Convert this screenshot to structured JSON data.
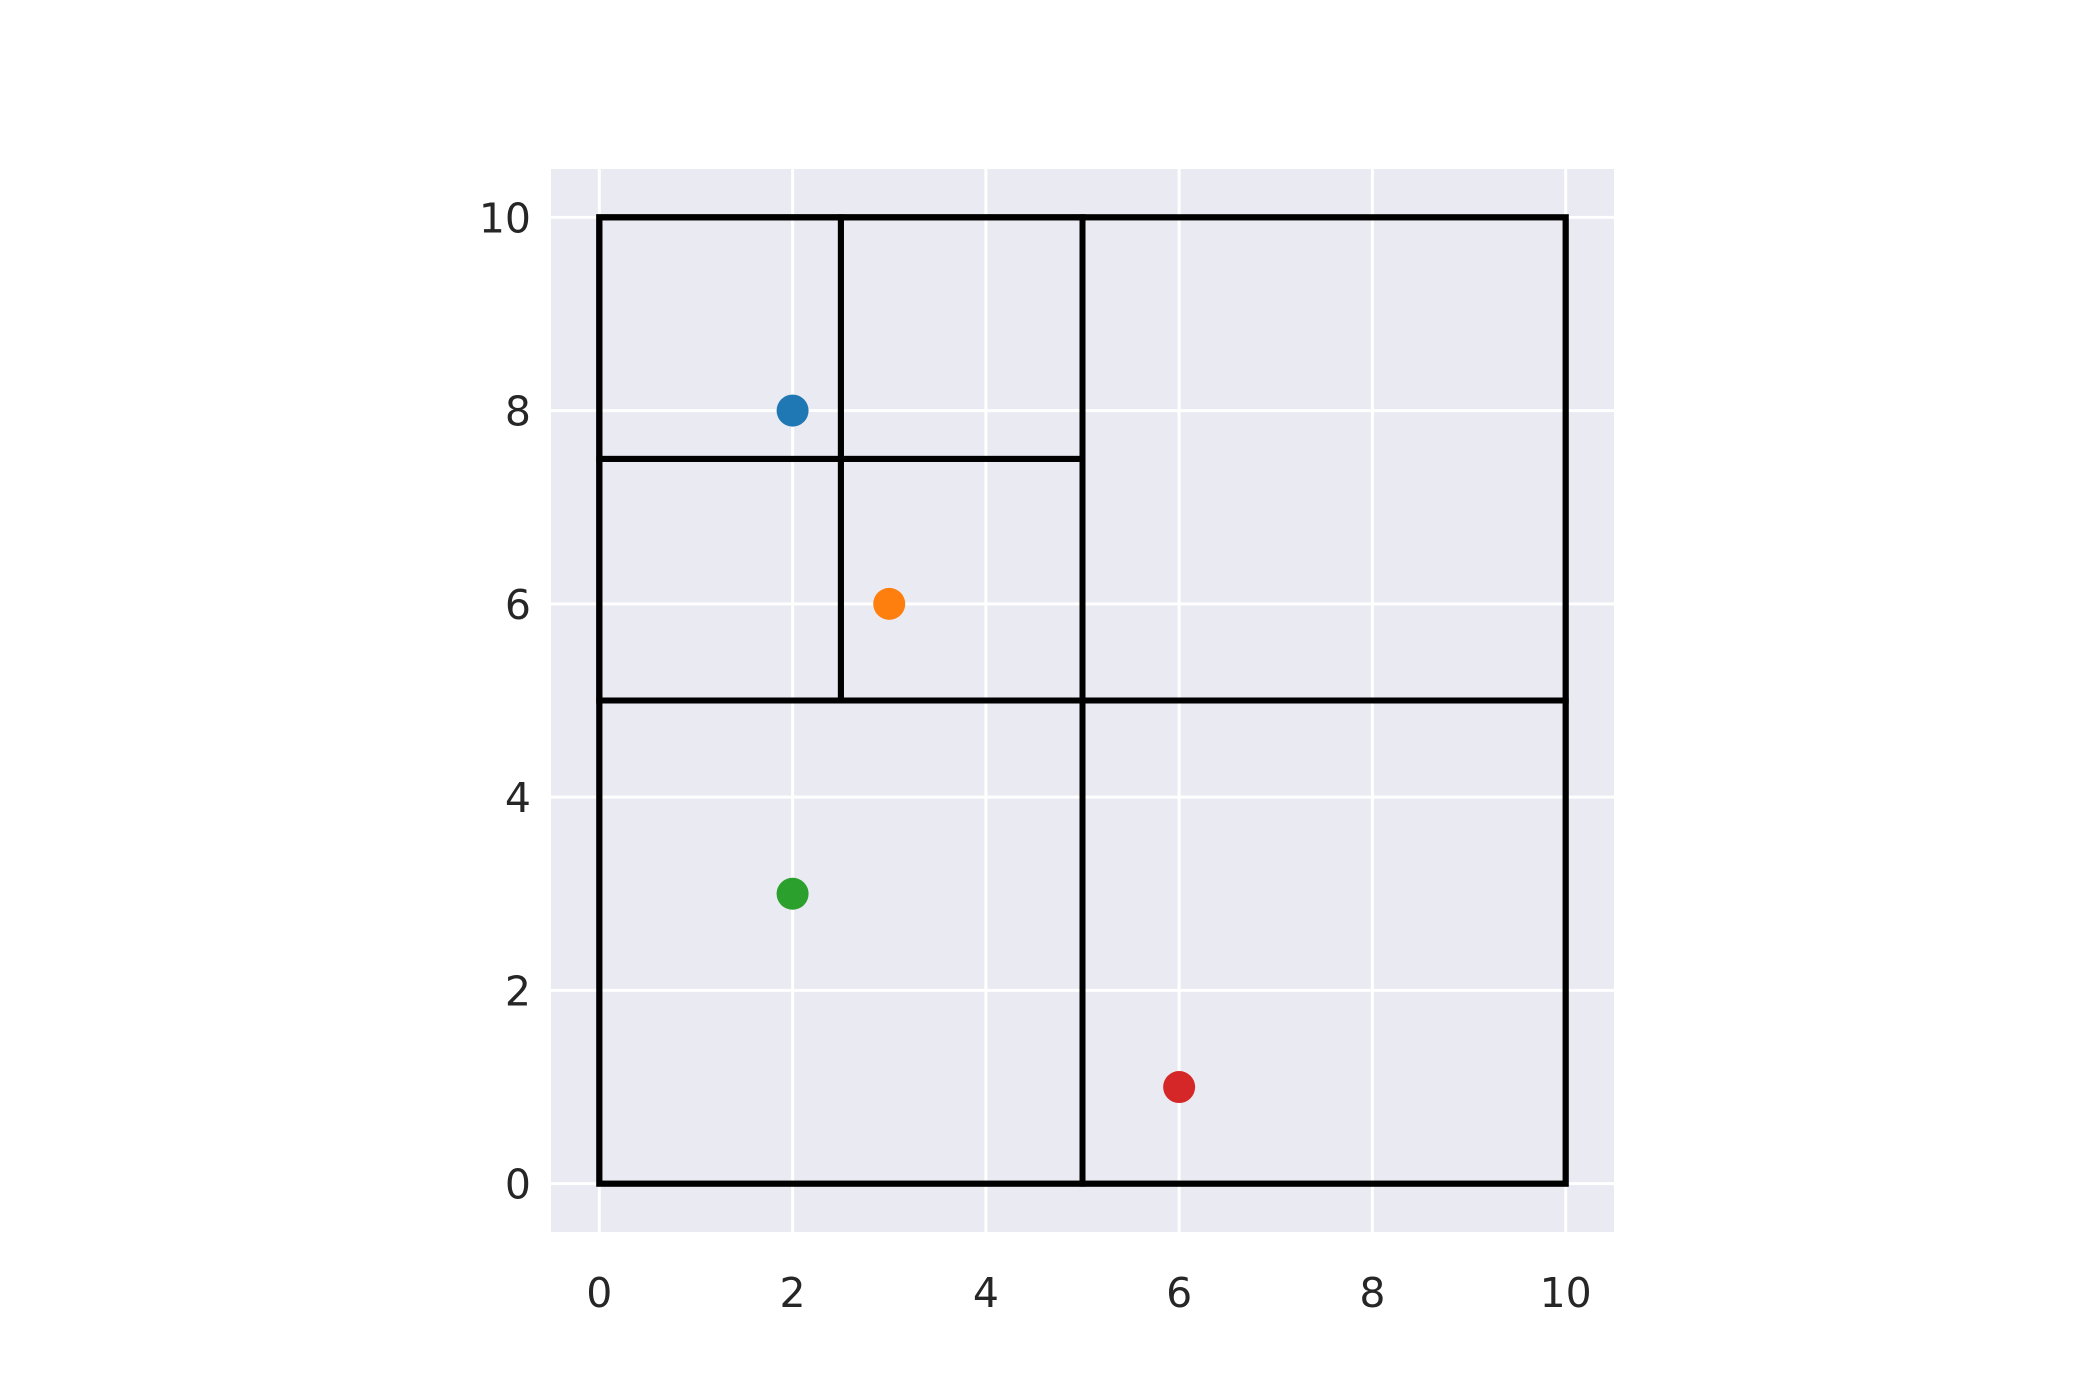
{
  "chart_data": {
    "type": "scatter",
    "title": "",
    "xlabel": "",
    "ylabel": "",
    "xlim": [
      -0.5,
      10.5
    ],
    "ylim": [
      -0.5,
      10.5
    ],
    "grid": true,
    "x_ticks": [
      "0",
      "2",
      "4",
      "6",
      "8",
      "10"
    ],
    "y_ticks": [
      "0",
      "2",
      "4",
      "6",
      "8",
      "10"
    ],
    "background_color": "#eaeaf2",
    "grid_color": "#ffffff",
    "line_color": "#000000",
    "points": [
      {
        "x": 2,
        "y": 8,
        "color": "#1f77b4"
      },
      {
        "x": 3,
        "y": 6,
        "color": "#ff7f0e"
      },
      {
        "x": 2,
        "y": 3,
        "color": "#2ca02c"
      },
      {
        "x": 6,
        "y": 1,
        "color": "#d62728"
      }
    ],
    "quadtree_cells": [
      {
        "x0": 0,
        "y0": 0,
        "x1": 10,
        "y1": 10
      },
      {
        "x0": 0,
        "y0": 0,
        "x1": 5,
        "y1": 5
      },
      {
        "x0": 5,
        "y0": 0,
        "x1": 10,
        "y1": 5
      },
      {
        "x0": 5,
        "y0": 5,
        "x1": 10,
        "y1": 10
      },
      {
        "x0": 0,
        "y0": 5,
        "x1": 5,
        "y1": 10
      },
      {
        "x0": 0,
        "y0": 5,
        "x1": 2.5,
        "y1": 7.5
      },
      {
        "x0": 2.5,
        "y0": 5,
        "x1": 5,
        "y1": 7.5
      },
      {
        "x0": 0,
        "y0": 7.5,
        "x1": 2.5,
        "y1": 10
      },
      {
        "x0": 2.5,
        "y0": 7.5,
        "x1": 5,
        "y1": 10
      }
    ]
  }
}
